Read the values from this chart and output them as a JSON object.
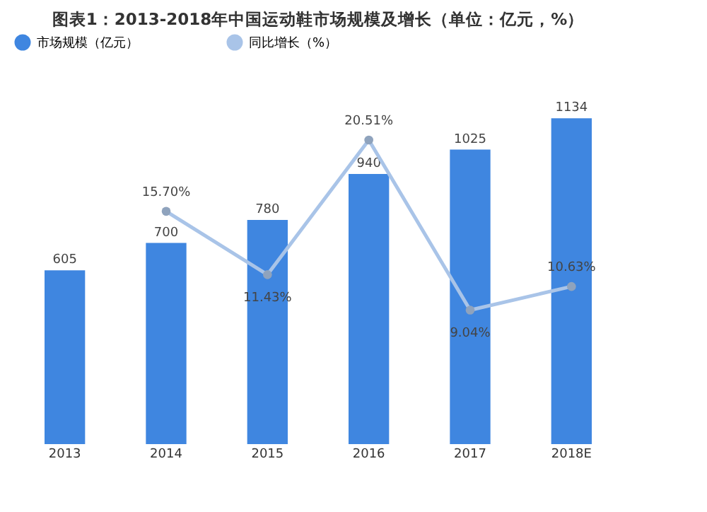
{
  "chart_data": {
    "type": "bar",
    "title": "图表1：2013-2018年中国运动鞋市场规模及增长（单位：亿元，%）",
    "categories": [
      "2013",
      "2014",
      "2015",
      "2016",
      "2017",
      "2018E"
    ],
    "series": [
      {
        "name": "市场规模（亿元）",
        "color": "#3f86e0",
        "values": [
          605,
          700,
          780,
          940,
          1025,
          1134
        ],
        "value_labels": [
          "605",
          "700",
          "780",
          "940",
          "1025",
          "1134"
        ]
      },
      {
        "name": "同比增长（%）",
        "type": "line",
        "axis": "y2",
        "color": "#a9c4e8",
        "marker": "circle",
        "values": [
          null,
          15.7,
          11.43,
          20.51,
          9.04,
          10.63
        ],
        "value_labels": [
          null,
          "15.70%",
          "11.43%",
          "20.51%",
          "9.04%",
          "10.63%"
        ]
      }
    ],
    "legend": "top",
    "tick_labels": "x",
    "grid": false
  }
}
